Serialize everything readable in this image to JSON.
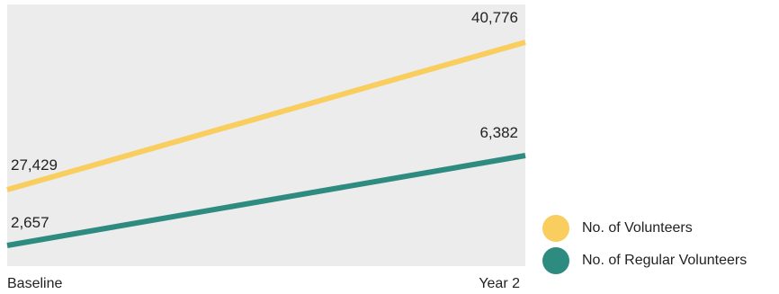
{
  "chart_data": {
    "type": "line",
    "title": "",
    "xlabel": "",
    "ylabel": "",
    "categories": [
      "Baseline",
      "Year 2"
    ],
    "series": [
      {
        "name": "No. of Volunteers",
        "values": [
          27429,
          40776
        ],
        "labels": [
          "27,429",
          "40,776"
        ],
        "color": "#f9cd5e"
      },
      {
        "name": "No. of Regular Volunteers",
        "values": [
          2657,
          6382
        ],
        "labels": [
          "2,657",
          "6,382"
        ],
        "color": "#2e8b80"
      }
    ],
    "grid": false,
    "legend_position": "bottom-right",
    "plot_background": "#ececec"
  }
}
